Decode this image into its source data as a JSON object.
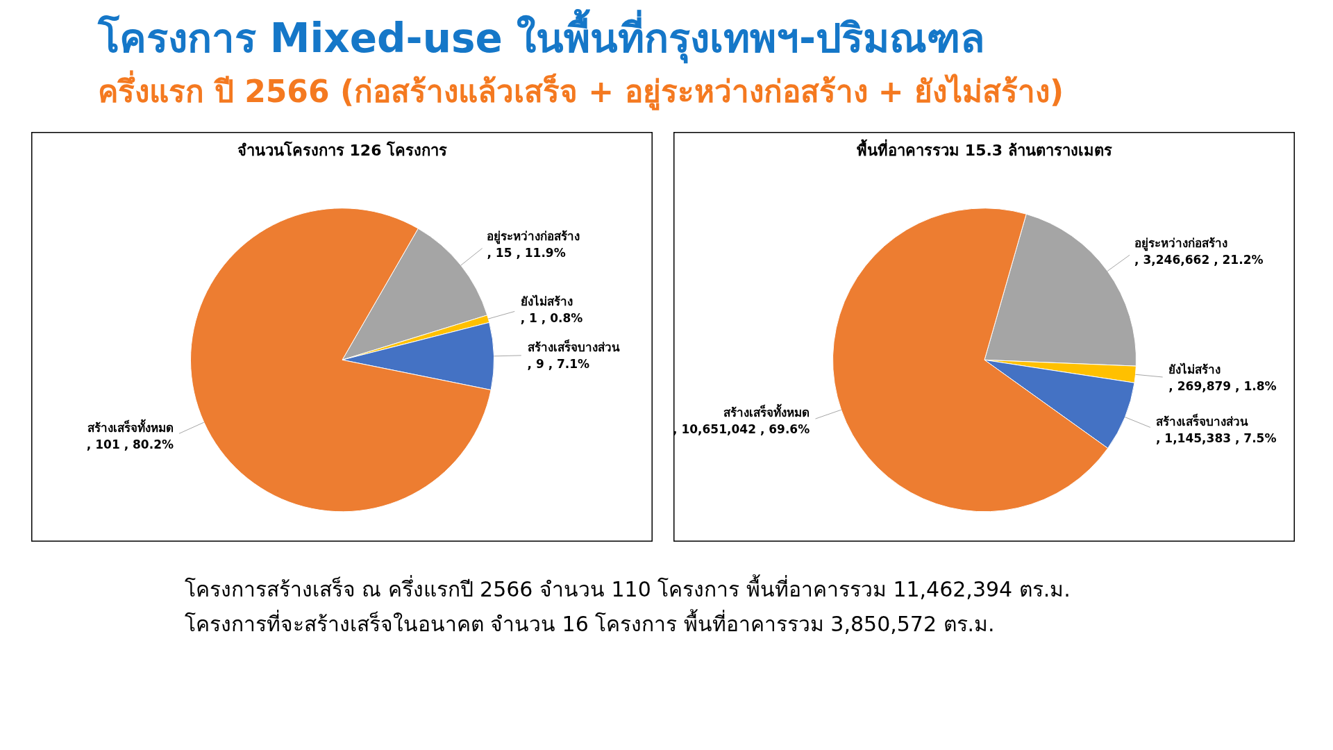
{
  "chart_data": [
    {
      "type": "other",
      "title": "โครงการ Mixed-use ในพื้นที่กรุงเทพฯ-ปริมณฑล",
      "subtitle": "ครึ่งแรก ปี 2566 (ก่อสร้างแล้วเสร็จ + อยู่ระหว่างก่อสร้าง + ยังไม่สร้าง)"
    },
    {
      "type": "pie",
      "title": "จำนวนโครงการ 126 โครงการ",
      "categories": [
        "อยู่ระหว่างก่อสร้าง",
        "ยังไม่สร้าง",
        "สร้างเสร็จบางส่วน",
        "สร้างเสร็จทั้งหมด"
      ],
      "values": [
        15,
        1,
        9,
        101
      ],
      "colors": [
        "#a5a5a5",
        "#ffc000",
        "#4472c4",
        "#ed7d31"
      ],
      "value_labels": [
        ", 15 , 11.9%",
        ", 1 , 0.8%",
        ", 9 , 7.1%",
        ", 101 , 80.2%"
      ]
    },
    {
      "type": "pie",
      "title": "พื้นที่อาคารรวม 15.3 ล้านตารางเมตร",
      "categories": [
        "อยู่ระหว่างก่อสร้าง",
        "ยังไม่สร้าง",
        "สร้างเสร็จบางส่วน",
        "สร้างเสร็จทั้งหมด"
      ],
      "values": [
        3246662,
        269879,
        1145383,
        10651042
      ],
      "colors": [
        "#a5a5a5",
        "#ffc000",
        "#4472c4",
        "#ed7d31"
      ],
      "value_labels": [
        ", 3,246,662 , 21.2%",
        ", 269,879 , 1.8%",
        ", 1,145,383 , 7.5%",
        ", 10,651,042 , 69.6%"
      ]
    },
    {
      "type": "other",
      "annotations": [
        "โครงการสร้างเสร็จ ณ ครึ่งแรกปี 2566 จำนวน 110 โครงการ พื้นที่อาคารรวม 11,462,394 ตร.ม.",
        "โครงการที่จะสร้างเสร็จในอนาคต จำนวน 16 โครงการ พื้นที่อาคารรวม  3,850,572 ตร.ม."
      ]
    }
  ]
}
